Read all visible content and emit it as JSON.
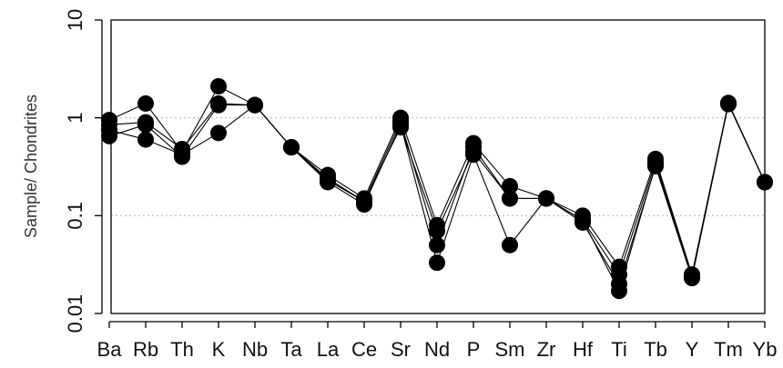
{
  "chart_data": {
    "type": "line",
    "title": "",
    "xlabel": "",
    "ylabel": "Sample/ Chondrites",
    "yscale": "log",
    "ylim": [
      0.01,
      10
    ],
    "yticks": [
      0.01,
      0.1,
      1,
      10
    ],
    "ytick_labels": [
      "0.01",
      "0.1",
      "1",
      "10"
    ],
    "grid": "horizontal dotted at 0.1 and 1",
    "legend": "none",
    "categories": [
      "Ba",
      "Rb",
      "Th",
      "K",
      "Nb",
      "Ta",
      "La",
      "Ce",
      "Sr",
      "Nd",
      "P",
      "Sm",
      "Zr",
      "Hf",
      "Ti",
      "Tb",
      "Y",
      "Tm",
      "Yb"
    ],
    "series": [
      {
        "values": [
          0.95,
          1.4,
          0.45,
          2.1,
          1.35,
          0.5,
          0.26,
          0.15,
          1.0,
          0.08,
          0.55,
          0.2,
          0.15,
          0.1,
          0.03,
          0.38,
          0.025,
          1.42,
          0.22
        ]
      },
      {
        "values": [
          0.85,
          0.9,
          0.48,
          1.4,
          1.35,
          0.5,
          0.24,
          0.14,
          0.92,
          0.05,
          0.5,
          0.15,
          0.15,
          0.09,
          0.025,
          0.35,
          0.024,
          1.4,
          0.22
        ]
      },
      {
        "values": [
          0.75,
          0.6,
          0.42,
          0.7,
          1.35,
          0.5,
          0.22,
          0.13,
          0.85,
          0.033,
          0.42,
          0.05,
          0.15,
          0.085,
          0.02,
          0.32,
          0.023,
          1.38,
          0.22
        ]
      },
      {
        "values": [
          0.65,
          0.85,
          0.4,
          1.35,
          1.35,
          0.5,
          0.23,
          0.14,
          0.8,
          0.07,
          0.45,
          0.15,
          0.15,
          0.09,
          0.017,
          0.33,
          0.024,
          1.4,
          0.22
        ]
      }
    ],
    "colors": {
      "line": "#000000",
      "marker": "#000000",
      "grid": "#bbbbbb",
      "axis": "#000000"
    }
  }
}
